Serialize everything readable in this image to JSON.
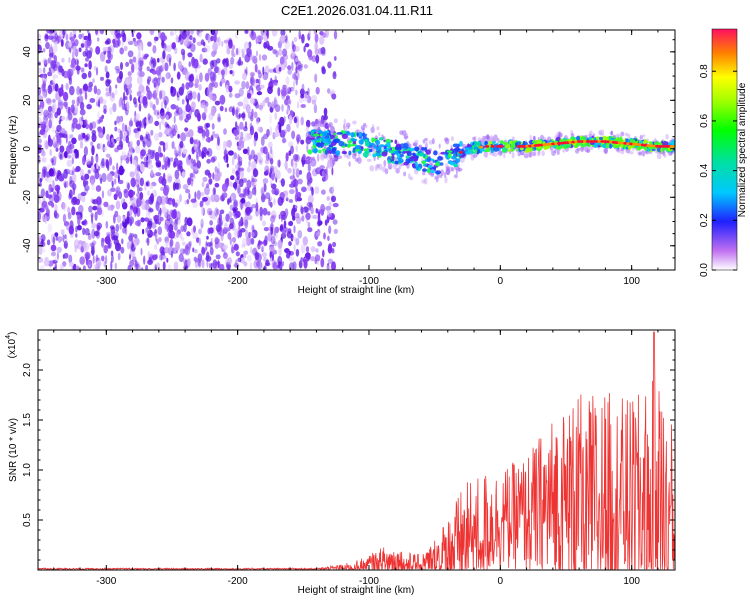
{
  "title": "C2E1.2026.031.04.11.R11",
  "chart_data": [
    {
      "type": "heatmap",
      "name": "spectrogram",
      "xlabel": "Height of straight line (km)",
      "ylabel": "Frequency (Hz)",
      "xlim": [
        -352,
        133
      ],
      "ylim": [
        -50,
        49
      ],
      "xticks": [
        -300,
        -200,
        -100,
        0,
        100
      ],
      "xtick_labels": [
        "-300",
        "-200",
        "-100",
        "0",
        "100"
      ],
      "yticks": [
        -40,
        -20,
        0,
        20,
        40
      ],
      "ytick_labels": [
        "-40",
        "-20",
        "0",
        "20",
        "40"
      ],
      "noise_region_x": [
        -352,
        -130
      ],
      "signal_track": {
        "x": [
          -145,
          -130,
          -110,
          -90,
          -70,
          -55,
          -45,
          -35,
          -25,
          -10,
          0,
          20,
          40,
          60,
          80,
          100,
          120,
          133
        ],
        "frequency": [
          3,
          3,
          2,
          0,
          -3,
          -5,
          -6,
          -3,
          0,
          1,
          1,
          1,
          2,
          3,
          3,
          2,
          1,
          1
        ]
      },
      "colorbar": {
        "label": "Normalized spectral amplitude",
        "range": [
          0,
          0.97
        ],
        "ticks": [
          0.0,
          0.2,
          0.4,
          0.6,
          0.8
        ],
        "tick_labels": [
          "0.0",
          "0.2",
          "0.4",
          "0.6",
          "0.8"
        ]
      }
    },
    {
      "type": "line",
      "name": "snr",
      "xlabel": "Height of straight line (km)",
      "ylabel": "SNR (10 * v/v)",
      "scale_label": "(x10",
      "scale_exponent": "4",
      "line_color": "#ee3333",
      "xlim": [
        -352,
        133
      ],
      "ylim": [
        0,
        2.4
      ],
      "xticks": [
        -300,
        -200,
        -100,
        0,
        100
      ],
      "xtick_labels": [
        "-300",
        "-200",
        "-100",
        "0",
        "100"
      ],
      "yticks": [
        0.5,
        1.0,
        1.5,
        2.0
      ],
      "ytick_labels": [
        "0.5",
        "1.0",
        "1.5",
        "2.0"
      ],
      "envelope": {
        "x": [
          -352,
          -140,
          -115,
          -100,
          -85,
          -70,
          -60,
          -50,
          -40,
          -30,
          -20,
          -10,
          0,
          20,
          40,
          60,
          80,
          100,
          120,
          133
        ],
        "base": [
          0.01,
          0.01,
          0.02,
          0.05,
          0.08,
          0.06,
          0.05,
          0.08,
          0.15,
          0.25,
          0.35,
          0.45,
          0.5,
          0.55,
          0.65,
          0.65,
          0.7,
          0.7,
          0.65,
          0.5
        ],
        "amplitude": [
          0.01,
          0.01,
          0.05,
          0.1,
          0.18,
          0.12,
          0.1,
          0.25,
          0.4,
          0.55,
          0.6,
          0.55,
          0.5,
          0.6,
          0.9,
          1.1,
          1.1,
          1.0,
          1.3,
          0.9
        ]
      },
      "peak": {
        "x": 117,
        "value": 2.38
      }
    }
  ]
}
